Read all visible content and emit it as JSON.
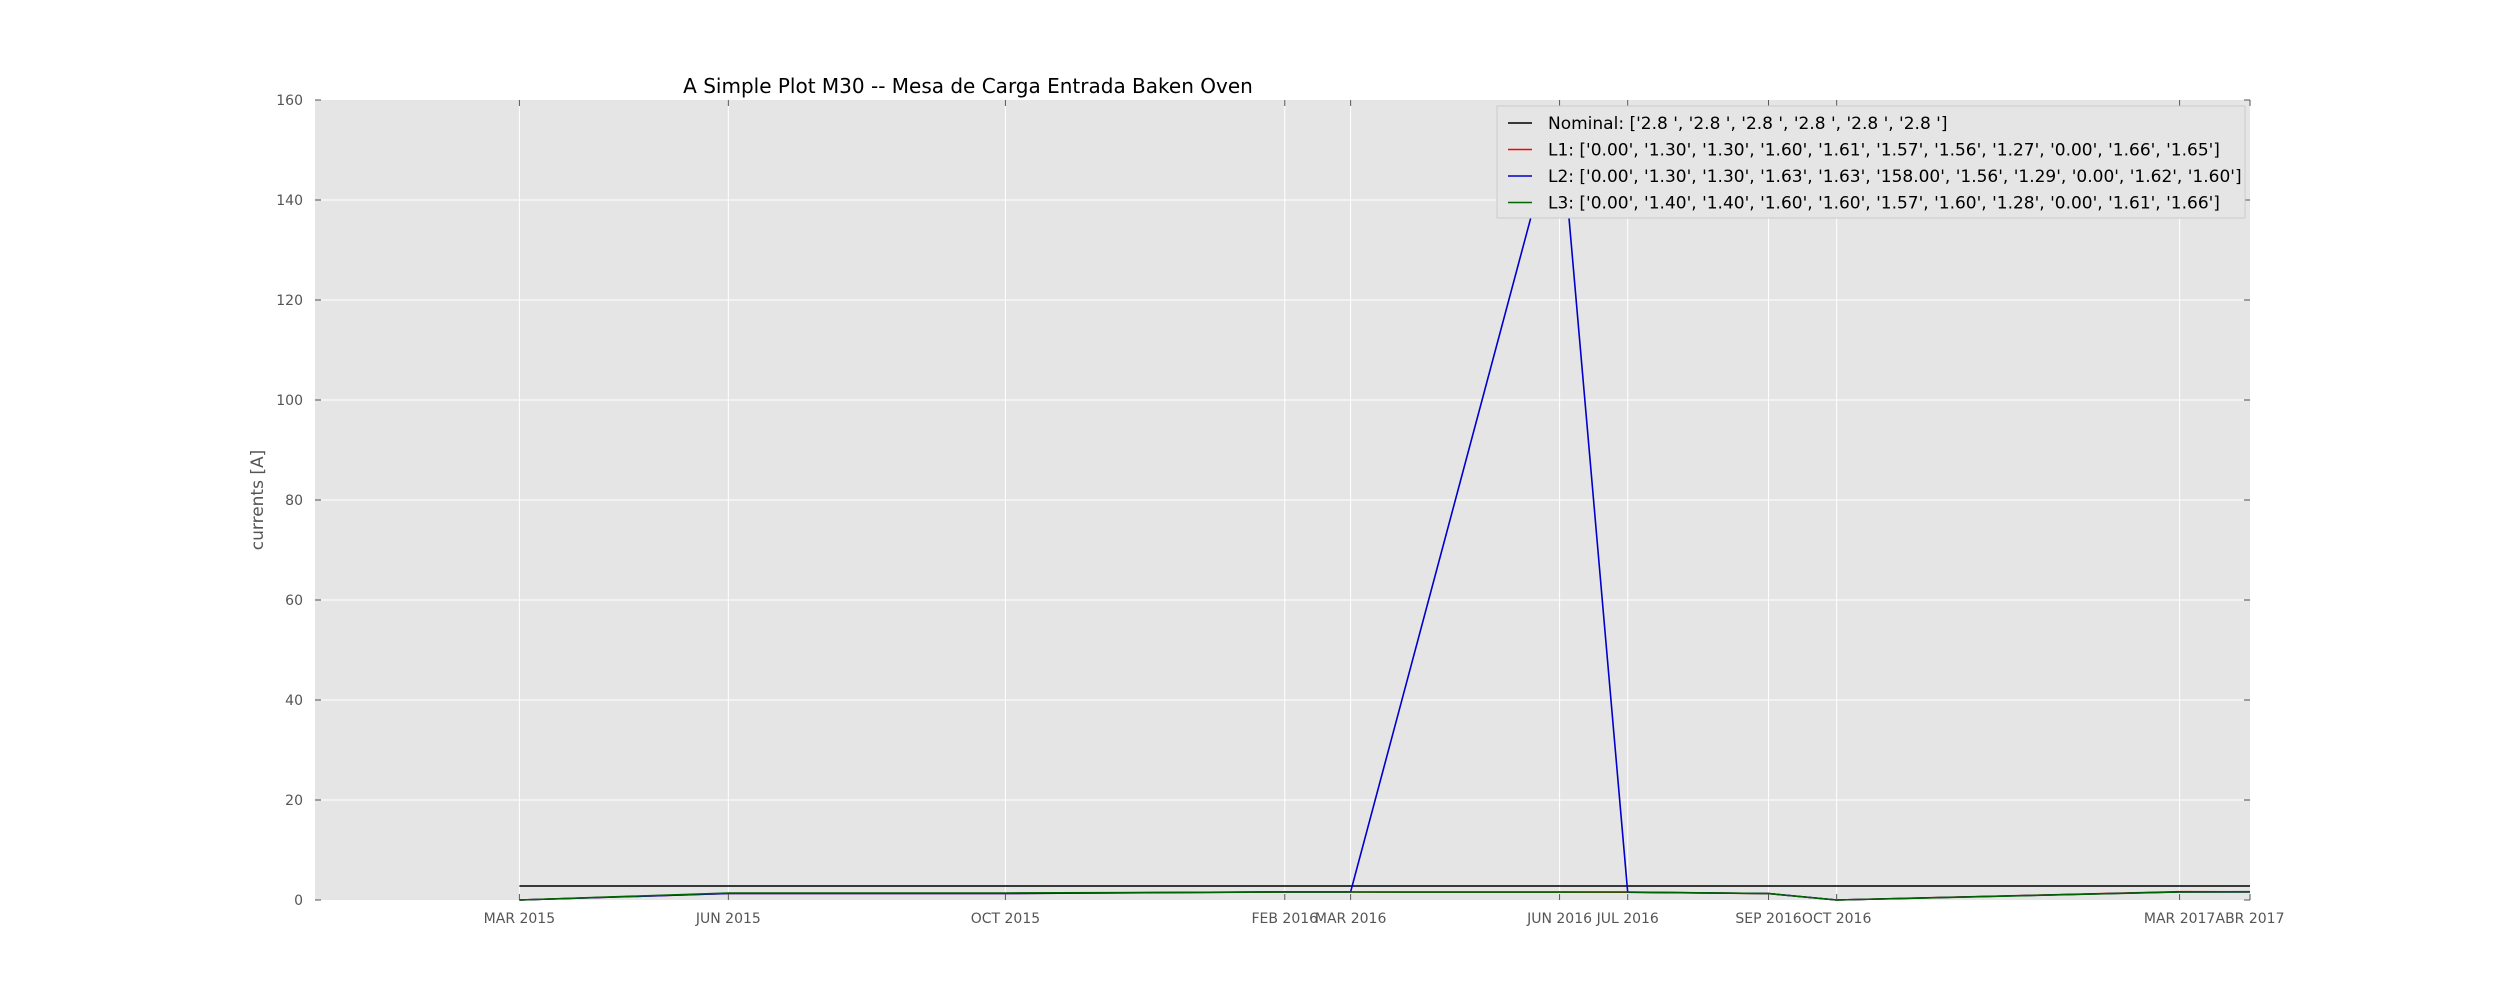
{
  "chart_data": {
    "type": "line",
    "title": "A Simple Plot M30 -- Mesa de Carga Entrada Baken Oven",
    "xlabel": "",
    "ylabel": "currents [A]",
    "ylim": [
      0,
      160
    ],
    "yticks": [
      "0",
      "20",
      "40",
      "60",
      "80",
      "100",
      "120",
      "140",
      "160"
    ],
    "x": [
      "MAR 2015",
      "JUN 2015",
      "OCT 2015",
      "FEB 2016",
      "MAR 2016",
      "JUN 2016",
      "JUL 2016",
      "SEP 2016",
      "OCT 2016",
      "MAR 2017",
      "ABR 2017"
    ],
    "x_dates": [
      "2015-03-01",
      "2015-06-01",
      "2015-10-01",
      "2016-02-01",
      "2016-03-01",
      "2016-06-01",
      "2016-07-01",
      "2016-09-01",
      "2016-10-01",
      "2017-03-01",
      "2017-04-01"
    ],
    "xlim": [
      "2014-12-01",
      "2017-04-01"
    ],
    "grid": true,
    "legend_position": "top-right",
    "series": [
      {
        "name": "Nominal:  ['2.8 ', '2.8 ', '2.8 ', '2.8 ', '2.8 ', '2.8 ']",
        "color": "#000000",
        "values": [
          2.8,
          2.8,
          2.8,
          2.8,
          2.8,
          2.8,
          2.8,
          2.8,
          2.8,
          2.8,
          2.8
        ]
      },
      {
        "name": "L1: ['0.00', '1.30', '1.30', '1.60', '1.61', '1.57', '1.56', '1.27', '0.00', '1.66', '1.65']",
        "color": "#ff0000",
        "values": [
          0.0,
          1.3,
          1.3,
          1.6,
          1.61,
          1.57,
          1.56,
          1.27,
          0.0,
          1.66,
          1.65
        ]
      },
      {
        "name": "L2:  ['0.00', '1.30', '1.30', '1.63', '1.63', '158.00', '1.56', '1.29', '0.00', '1.62', '1.60']",
        "color": "#0000cc",
        "values": [
          0.0,
          1.3,
          1.3,
          1.63,
          1.63,
          158.0,
          1.56,
          1.29,
          0.0,
          1.62,
          1.6
        ]
      },
      {
        "name": "L3: ['0.00', '1.40', '1.40', '1.60', '1.60', '1.57', '1.60', '1.28', '0.00', '1.61', '1.66']",
        "color": "#006400",
        "values": [
          0.0,
          1.4,
          1.4,
          1.6,
          1.6,
          1.57,
          1.6,
          1.28,
          0.0,
          1.61,
          1.66
        ]
      }
    ],
    "colors": {
      "plot_background": "#e5e5e5",
      "grid": "#ffffff",
      "tick": "#555555"
    }
  }
}
